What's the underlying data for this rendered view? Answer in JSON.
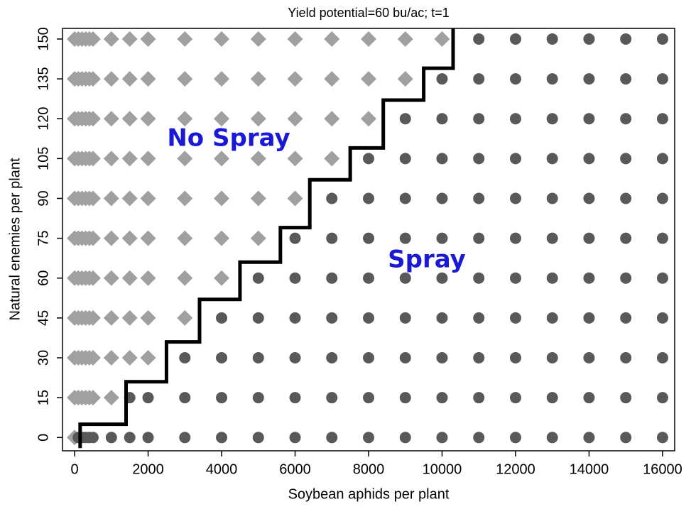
{
  "chart_data": {
    "type": "scatter",
    "title": "Yield potential=60 bu/ac; t=1",
    "xlabel": "Soybean aphids per plant",
    "ylabel": "Natural enemies per plant",
    "xlim": [
      -330,
      16330
    ],
    "ylim": [
      -5,
      154
    ],
    "xticks": [
      0,
      2000,
      4000,
      6000,
      8000,
      10000,
      12000,
      14000,
      16000
    ],
    "yticks": [
      0,
      15,
      30,
      45,
      60,
      75,
      90,
      105,
      120,
      135,
      150
    ],
    "grid": false,
    "annotations": [
      "No Spray",
      "Spray"
    ],
    "annotation_color": "#1a1ad6",
    "series": [
      {
        "marker": "diamond",
        "color": "#a0a0a0",
        "x": [
          0,
          0,
          100,
          200,
          300,
          400,
          500,
          1000,
          0,
          100,
          200,
          300,
          400,
          500,
          1000,
          1500,
          2000,
          0,
          100,
          200,
          300,
          400,
          500,
          1000,
          1500,
          2000,
          3000,
          0,
          100,
          200,
          300,
          400,
          500,
          1000,
          1500,
          2000,
          3000,
          4000,
          0,
          100,
          200,
          300,
          400,
          500,
          1000,
          1500,
          2000,
          3000,
          4000,
          5000,
          0,
          100,
          200,
          300,
          400,
          500,
          1000,
          1500,
          2000,
          3000,
          4000,
          5000,
          6000,
          0,
          100,
          200,
          300,
          400,
          500,
          1000,
          1500,
          2000,
          3000,
          4000,
          5000,
          6000,
          7000,
          0,
          100,
          200,
          300,
          400,
          500,
          1000,
          1500,
          2000,
          3000,
          4000,
          5000,
          6000,
          7000,
          8000,
          0,
          100,
          200,
          300,
          400,
          500,
          1000,
          1500,
          2000,
          3000,
          4000,
          5000,
          6000,
          7000,
          8000,
          9000,
          0,
          100,
          200,
          300,
          400,
          500,
          1000,
          1500,
          2000,
          3000,
          4000,
          5000,
          6000,
          7000,
          8000,
          9000,
          10000
        ],
        "y": [
          0,
          15,
          15,
          15,
          15,
          15,
          15,
          15,
          30,
          30,
          30,
          30,
          30,
          30,
          30,
          30,
          30,
          45,
          45,
          45,
          45,
          45,
          45,
          45,
          45,
          45,
          45,
          60,
          60,
          60,
          60,
          60,
          60,
          60,
          60,
          60,
          60,
          60,
          75,
          75,
          75,
          75,
          75,
          75,
          75,
          75,
          75,
          75,
          75,
          75,
          90,
          90,
          90,
          90,
          90,
          90,
          90,
          90,
          90,
          90,
          90,
          90,
          90,
          105,
          105,
          105,
          105,
          105,
          105,
          105,
          105,
          105,
          105,
          105,
          105,
          105,
          105,
          120,
          120,
          120,
          120,
          120,
          120,
          120,
          120,
          120,
          120,
          120,
          120,
          120,
          120,
          120,
          135,
          135,
          135,
          135,
          135,
          135,
          135,
          135,
          135,
          135,
          135,
          135,
          135,
          135,
          135,
          135,
          150,
          150,
          150,
          150,
          150,
          150,
          150,
          150,
          150,
          150,
          150,
          150,
          150,
          150,
          150,
          150,
          150
        ]
      },
      {
        "marker": "circle",
        "color": "#595959",
        "x": [
          100,
          200,
          300,
          400,
          500,
          1000,
          1500,
          2000,
          3000,
          4000,
          5000,
          6000,
          7000,
          8000,
          9000,
          10000,
          11000,
          12000,
          13000,
          14000,
          15000,
          16000,
          1500,
          2000,
          3000,
          4000,
          5000,
          6000,
          7000,
          8000,
          9000,
          10000,
          11000,
          12000,
          13000,
          14000,
          15000,
          16000,
          3000,
          4000,
          5000,
          6000,
          7000,
          8000,
          9000,
          10000,
          11000,
          12000,
          13000,
          14000,
          15000,
          16000,
          4000,
          5000,
          6000,
          7000,
          8000,
          9000,
          10000,
          11000,
          12000,
          13000,
          14000,
          15000,
          16000,
          5000,
          6000,
          7000,
          8000,
          9000,
          10000,
          11000,
          12000,
          13000,
          14000,
          15000,
          16000,
          6000,
          7000,
          8000,
          9000,
          10000,
          11000,
          12000,
          13000,
          14000,
          15000,
          16000,
          7000,
          8000,
          9000,
          10000,
          11000,
          12000,
          13000,
          14000,
          15000,
          16000,
          8000,
          9000,
          10000,
          11000,
          12000,
          13000,
          14000,
          15000,
          16000,
          9000,
          10000,
          11000,
          12000,
          13000,
          14000,
          15000,
          16000,
          10000,
          11000,
          12000,
          13000,
          14000,
          15000,
          16000,
          11000,
          12000,
          13000,
          14000,
          15000,
          16000
        ],
        "y": [
          0,
          0,
          0,
          0,
          0,
          0,
          0,
          0,
          0,
          0,
          0,
          0,
          0,
          0,
          0,
          0,
          0,
          0,
          0,
          0,
          0,
          0,
          15,
          15,
          15,
          15,
          15,
          15,
          15,
          15,
          15,
          15,
          15,
          15,
          15,
          15,
          15,
          15,
          30,
          30,
          30,
          30,
          30,
          30,
          30,
          30,
          30,
          30,
          30,
          30,
          30,
          30,
          45,
          45,
          45,
          45,
          45,
          45,
          45,
          45,
          45,
          45,
          45,
          45,
          45,
          60,
          60,
          60,
          60,
          60,
          60,
          60,
          60,
          60,
          60,
          60,
          60,
          75,
          75,
          75,
          75,
          75,
          75,
          75,
          75,
          75,
          75,
          75,
          90,
          90,
          90,
          90,
          90,
          90,
          90,
          90,
          90,
          90,
          105,
          105,
          105,
          105,
          105,
          105,
          105,
          105,
          105,
          120,
          120,
          120,
          120,
          120,
          120,
          120,
          120,
          135,
          135,
          135,
          135,
          135,
          135,
          135,
          150,
          150,
          150,
          150,
          150,
          150
        ]
      },
      {
        "marker": "line",
        "color": "#000000",
        "x": [
          150,
          150,
          1400,
          1400,
          2500,
          2500,
          3400,
          3400,
          4500,
          4500,
          5600,
          5600,
          6400,
          6400,
          7500,
          7500,
          8400,
          8400,
          9500,
          9500,
          10300,
          10300
        ],
        "y": [
          -4,
          5,
          5,
          21,
          21,
          36,
          36,
          52,
          52,
          66,
          66,
          79,
          79,
          97,
          97,
          109,
          109,
          127,
          127,
          139,
          139,
          154
        ]
      }
    ]
  }
}
